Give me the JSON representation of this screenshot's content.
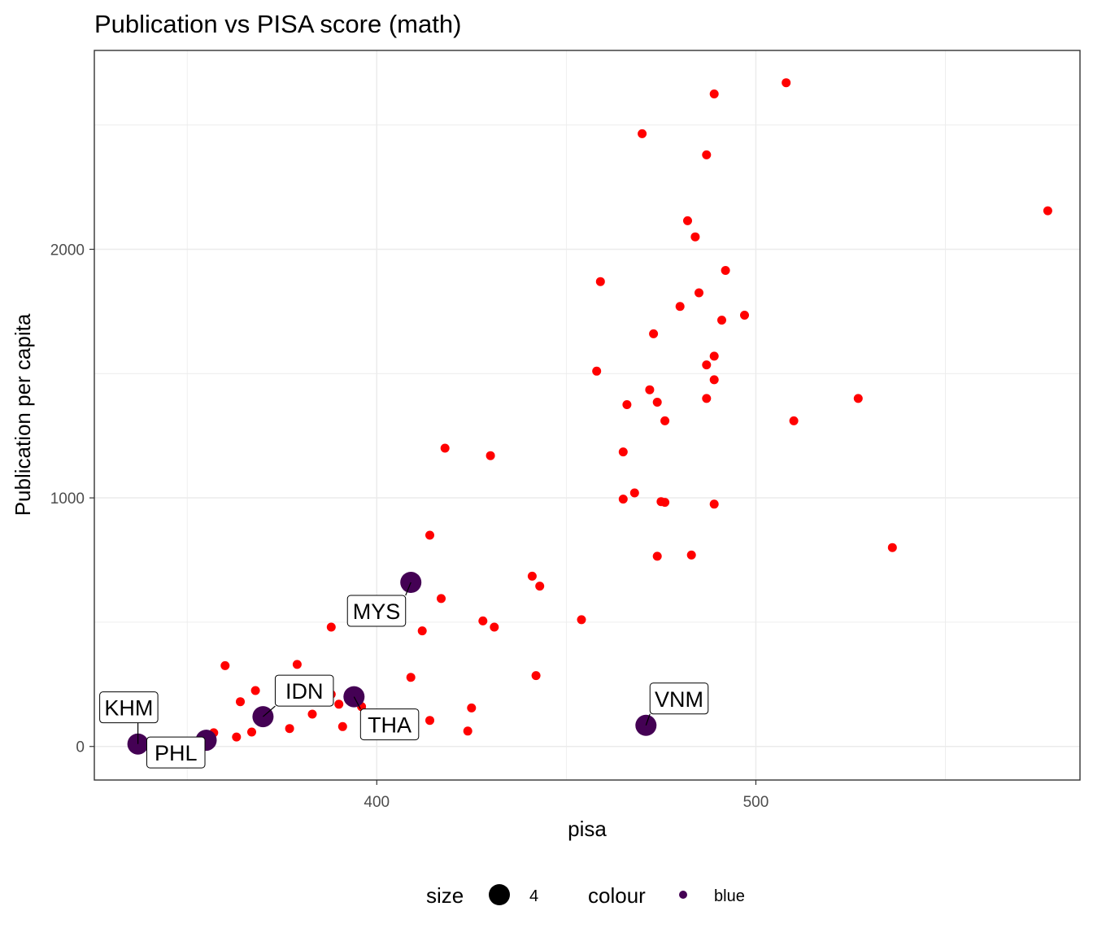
{
  "chart_data": {
    "type": "scatter",
    "title": "Publication vs PISA score (math)",
    "xlabel": "pisa",
    "ylabel": "Publication per capita",
    "xlim": [
      325.5,
      585.5
    ],
    "ylim": [
      -135,
      2800
    ],
    "x_ticks": [
      400,
      500
    ],
    "x_tick_labels": [
      "400",
      "500"
    ],
    "x_minor": [
      350,
      450,
      550
    ],
    "y_ticks": [
      0,
      1000,
      2000
    ],
    "y_tick_labels": [
      "0",
      "1000",
      "2000"
    ],
    "y_minor": [
      500,
      1500,
      2500
    ],
    "grid": true,
    "theme": "bw",
    "colors": {
      "red": "#FF0000",
      "highlight": "#440154",
      "grid": "#EBEBEB",
      "panel_border": "#333333"
    },
    "series": [
      {
        "color": "#FF0000",
        "points": [
          [
            508,
            2670
          ],
          [
            489,
            2625
          ],
          [
            470,
            2465
          ],
          [
            487,
            2380
          ],
          [
            577,
            2155
          ],
          [
            482,
            2115
          ],
          [
            484,
            2050
          ],
          [
            492,
            1915
          ],
          [
            459,
            1870
          ],
          [
            485,
            1825
          ],
          [
            480,
            1770
          ],
          [
            497,
            1735
          ],
          [
            491,
            1715
          ],
          [
            473,
            1660
          ],
          [
            489,
            1570
          ],
          [
            487,
            1535
          ],
          [
            458,
            1510
          ],
          [
            489,
            1475
          ],
          [
            472,
            1435
          ],
          [
            474,
            1385
          ],
          [
            487,
            1400
          ],
          [
            527,
            1400
          ],
          [
            466,
            1375
          ],
          [
            476,
            1310
          ],
          [
            510,
            1310
          ],
          [
            418,
            1200
          ],
          [
            430,
            1170
          ],
          [
            465,
            1185
          ],
          [
            468,
            1020
          ],
          [
            465,
            995
          ],
          [
            475,
            985
          ],
          [
            476,
            982
          ],
          [
            489,
            975
          ],
          [
            414,
            850
          ],
          [
            536,
            800
          ],
          [
            474,
            765
          ],
          [
            483,
            770
          ],
          [
            441,
            685
          ],
          [
            443,
            645
          ],
          [
            417,
            595
          ],
          [
            454,
            510
          ],
          [
            428,
            505
          ],
          [
            406,
            500
          ],
          [
            431,
            480
          ],
          [
            412,
            465
          ],
          [
            388,
            480
          ],
          [
            379,
            330
          ],
          [
            360,
            325
          ],
          [
            442,
            285
          ],
          [
            409,
            278
          ],
          [
            368,
            225
          ],
          [
            388,
            210
          ],
          [
            364,
            180
          ],
          [
            381,
            180
          ],
          [
            390,
            170
          ],
          [
            396,
            160
          ],
          [
            425,
            155
          ],
          [
            383,
            130
          ],
          [
            414,
            105
          ],
          [
            391,
            80
          ],
          [
            377,
            72
          ],
          [
            367,
            58
          ],
          [
            357,
            55
          ],
          [
            424,
            62
          ],
          [
            363,
            38
          ]
        ]
      },
      {
        "name": "blue",
        "color": "#440154",
        "size": 4,
        "points": [
          [
            409,
            660,
            "MYS"
          ],
          [
            394,
            200,
            "THA"
          ],
          [
            370,
            120,
            "IDN"
          ],
          [
            471,
            85,
            "VNM"
          ],
          [
            337,
            10,
            "KHM"
          ],
          [
            355,
            25,
            "PHL"
          ]
        ]
      }
    ],
    "labels": [
      {
        "text": "MYS"
      },
      {
        "text": "IDN"
      },
      {
        "text": "KHM"
      },
      {
        "text": "VNM"
      },
      {
        "text": "THA"
      },
      {
        "text": "PHL"
      }
    ],
    "legend": {
      "position": "bottom",
      "size_title": "size",
      "size_value": "4",
      "colour_title": "colour",
      "colour_value": "blue"
    }
  }
}
